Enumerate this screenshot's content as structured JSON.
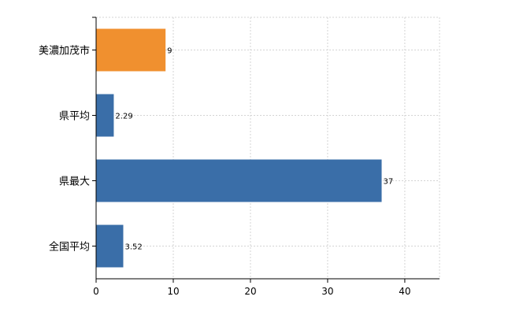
{
  "chart_data": {
    "type": "bar",
    "orientation": "horizontal",
    "categories": [
      "美濃加茂市",
      "県平均",
      "県最大",
      "全国平均"
    ],
    "values": [
      9,
      2.29,
      37,
      3.52
    ],
    "data_labels": [
      "9",
      "2.29",
      "37",
      "3.52"
    ],
    "bar_colors": [
      "#f0902f",
      "#3a6ea8",
      "#3a6ea8",
      "#3a6ea8"
    ],
    "title": "",
    "xlabel": "",
    "ylabel": "",
    "xlim": [
      0,
      44.5
    ],
    "xticks": [
      0,
      10,
      20,
      30,
      40
    ],
    "xtick_labels": [
      "0",
      "10",
      "20",
      "30",
      "40"
    ],
    "grid": true,
    "legend": "none"
  }
}
